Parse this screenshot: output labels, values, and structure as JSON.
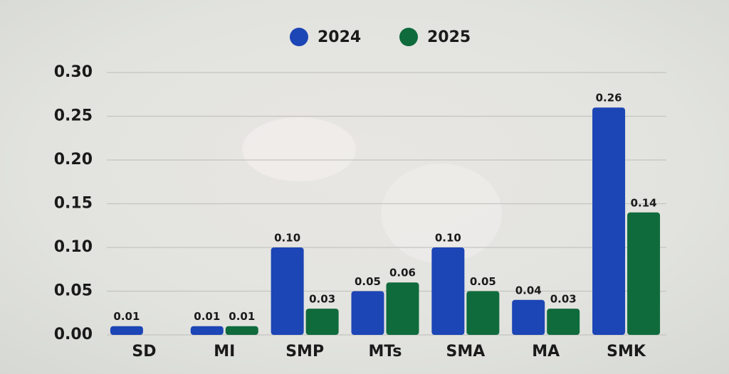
{
  "chart_data": {
    "type": "bar",
    "categories": [
      "SD",
      "MI",
      "SMP",
      "MTs",
      "SMA",
      "MA",
      "SMK"
    ],
    "series": [
      {
        "name": "2024",
        "color": "#1c45b5",
        "values": [
          0.01,
          0.01,
          0.1,
          0.05,
          0.1,
          0.04,
          0.26
        ],
        "value_labels": [
          "0.01",
          "0.01",
          "0.10",
          "0.05",
          "0.10",
          "0.04",
          "0.26"
        ]
      },
      {
        "name": "2025",
        "color": "#0f6b3c",
        "values": [
          null,
          0.01,
          0.03,
          0.06,
          0.05,
          0.03,
          0.14
        ],
        "value_labels": [
          null,
          "0.01",
          "0.03",
          "0.06",
          "0.05",
          "0.03",
          "0.14"
        ]
      }
    ],
    "ylim": [
      0,
      0.3
    ],
    "yticks": [
      {
        "value": 0,
        "label": "0.00"
      },
      0.05,
      {
        "value": 0.1,
        "label": "0.10"
      },
      0.15,
      {
        "value": 0.2,
        "label": "0.20"
      },
      0.25,
      {
        "value": 0.3,
        "label": "0.30"
      }
    ],
    "grid": true,
    "legend": "top"
  }
}
